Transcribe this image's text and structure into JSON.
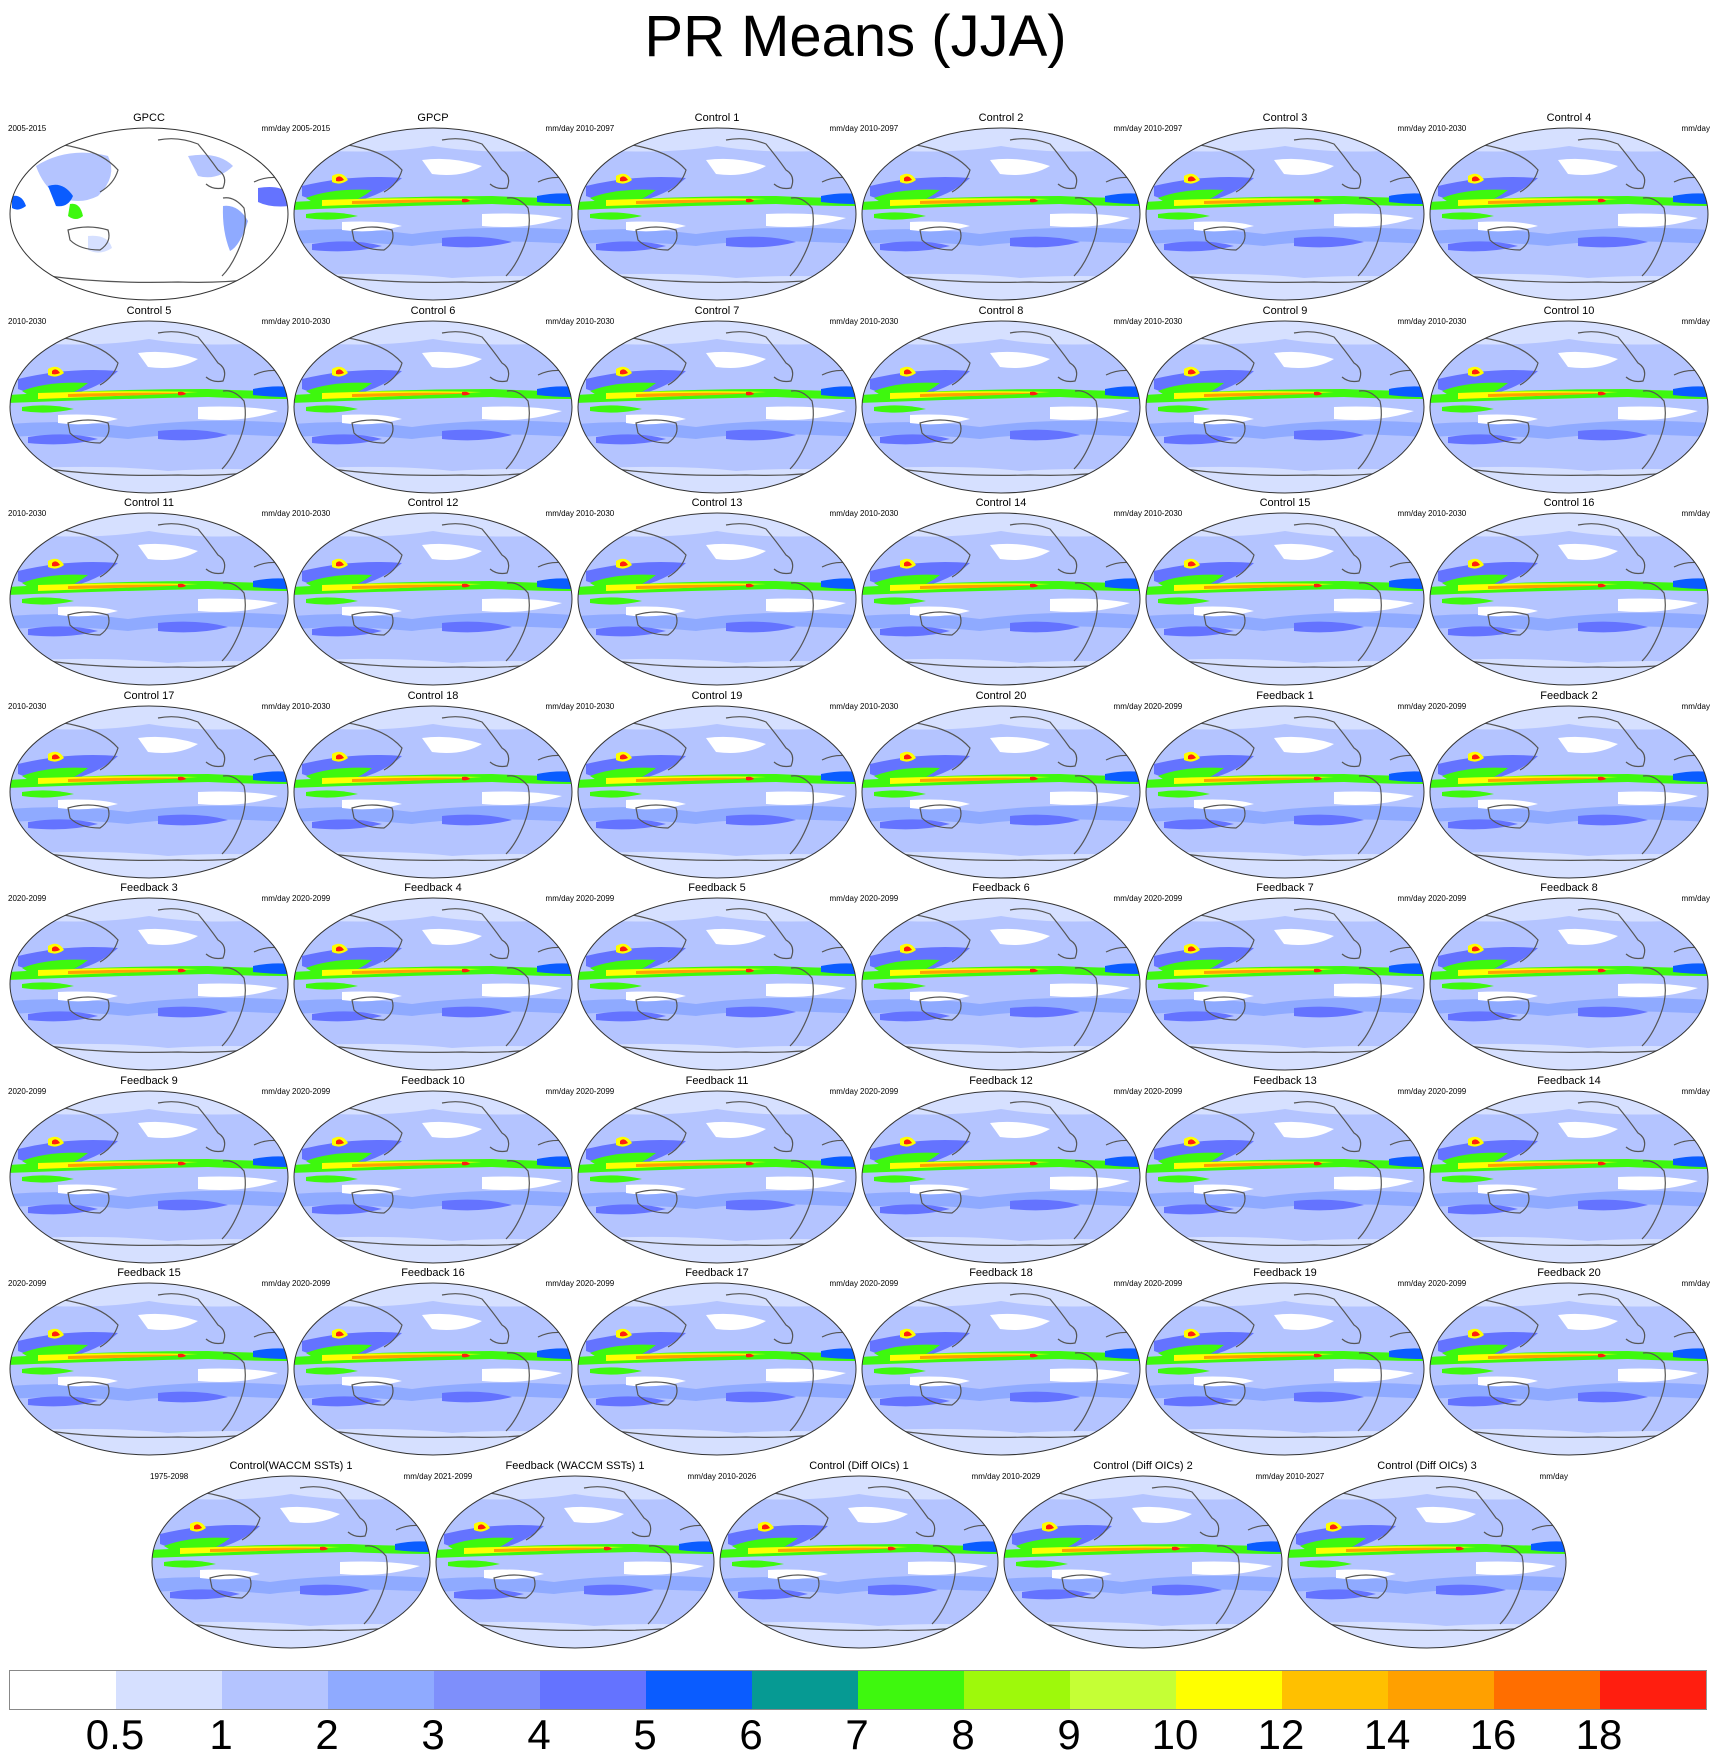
{
  "title": "PR Means (JJA)",
  "units": "mm/day",
  "panels": [
    {
      "name": "GPCC",
      "period": "2005-2015"
    },
    {
      "name": "GPCP",
      "period": "2005-2015"
    },
    {
      "name": "Control 1",
      "period": "2010-2097"
    },
    {
      "name": "Control 2",
      "period": "2010-2097"
    },
    {
      "name": "Control 3",
      "period": "2010-2097"
    },
    {
      "name": "Control 4",
      "period": "2010-2030"
    },
    {
      "name": "Control 5",
      "period": "2010-2030"
    },
    {
      "name": "Control 6",
      "period": "2010-2030"
    },
    {
      "name": "Control 7",
      "period": "2010-2030"
    },
    {
      "name": "Control 8",
      "period": "2010-2030"
    },
    {
      "name": "Control 9",
      "period": "2010-2030"
    },
    {
      "name": "Control 10",
      "period": "2010-2030"
    },
    {
      "name": "Control 11",
      "period": "2010-2030"
    },
    {
      "name": "Control 12",
      "period": "2010-2030"
    },
    {
      "name": "Control 13",
      "period": "2010-2030"
    },
    {
      "name": "Control 14",
      "period": "2010-2030"
    },
    {
      "name": "Control 15",
      "period": "2010-2030"
    },
    {
      "name": "Control 16",
      "period": "2010-2030"
    },
    {
      "name": "Control 17",
      "period": "2010-2030"
    },
    {
      "name": "Control 18",
      "period": "2010-2030"
    },
    {
      "name": "Control 19",
      "period": "2010-2030"
    },
    {
      "name": "Control 20",
      "period": "2010-2030"
    },
    {
      "name": "Feedback 1",
      "period": "2020-2099"
    },
    {
      "name": "Feedback 2",
      "period": "2020-2099"
    },
    {
      "name": "Feedback 3",
      "period": "2020-2099"
    },
    {
      "name": "Feedback 4",
      "period": "2020-2099"
    },
    {
      "name": "Feedback 5",
      "period": "2020-2099"
    },
    {
      "name": "Feedback 6",
      "period": "2020-2099"
    },
    {
      "name": "Feedback 7",
      "period": "2020-2099"
    },
    {
      "name": "Feedback 8",
      "period": "2020-2099"
    },
    {
      "name": "Feedback 9",
      "period": "2020-2099"
    },
    {
      "name": "Feedback 10",
      "period": "2020-2099"
    },
    {
      "name": "Feedback 11",
      "period": "2020-2099"
    },
    {
      "name": "Feedback 12",
      "period": "2020-2099"
    },
    {
      "name": "Feedback 13",
      "period": "2020-2099"
    },
    {
      "name": "Feedback 14",
      "period": "2020-2099"
    },
    {
      "name": "Feedback 15",
      "period": "2020-2099"
    },
    {
      "name": "Feedback 16",
      "period": "2020-2099"
    },
    {
      "name": "Feedback 17",
      "period": "2020-2099"
    },
    {
      "name": "Feedback 18",
      "period": "2020-2099"
    },
    {
      "name": "Feedback 19",
      "period": "2020-2099"
    },
    {
      "name": "Feedback 20",
      "period": "2020-2099"
    },
    {
      "name": "Control(WACCM SSTs) 1",
      "period": "1975-2098"
    },
    {
      "name": "Feedback (WACCM SSTs) 1",
      "period": "2021-2099"
    },
    {
      "name": "Control (Diff OICs) 1",
      "period": "2010-2026"
    },
    {
      "name": "Control (Diff OICs) 2",
      "period": "2010-2029"
    },
    {
      "name": "Control (Diff OICs) 3",
      "period": "2010-2027"
    }
  ],
  "colorbar": {
    "levels": [
      "0.5",
      "1",
      "2",
      "3",
      "4",
      "5",
      "6",
      "7",
      "8",
      "9",
      "10",
      "12",
      "14",
      "16",
      "18"
    ],
    "colors": [
      "#ffffff",
      "#d6e0ff",
      "#b4c4ff",
      "#8faaff",
      "#7e8ffb",
      "#6473ff",
      "#0a5cff",
      "#069a93",
      "#3ef80e",
      "#9ef90b",
      "#c5ff35",
      "#ffff00",
      "#ffc000",
      "#ffa000",
      "#ff6e00",
      "#ff1e0f"
    ]
  }
}
